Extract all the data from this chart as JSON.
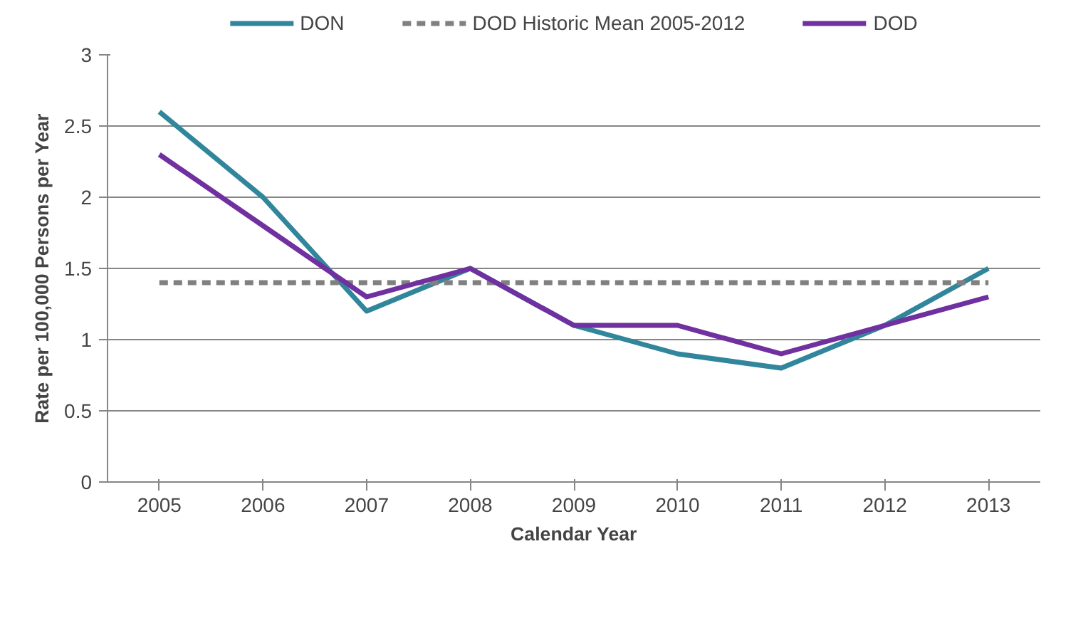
{
  "chart_data": {
    "type": "line",
    "xlabel": "Calendar Year",
    "ylabel": "Rate per 100,000 Persons per Year",
    "categories": [
      "2005",
      "2006",
      "2007",
      "2008",
      "2009",
      "2010",
      "2011",
      "2012",
      "2013"
    ],
    "series": [
      {
        "name": "DON",
        "color": "#31869b",
        "values": [
          2.6,
          2.0,
          1.2,
          1.5,
          1.1,
          0.9,
          0.8,
          1.1,
          1.5
        ]
      },
      {
        "name": "DOD Historic Mean 2005-2012",
        "color": "#808080",
        "line_style": "dashed",
        "values": [
          1.4,
          1.4,
          1.4,
          1.4,
          1.4,
          1.4,
          1.4,
          1.4,
          1.4
        ]
      },
      {
        "name": "DOD",
        "color": "#7030a0",
        "values": [
          2.3,
          1.8,
          1.3,
          1.5,
          1.1,
          1.1,
          0.9,
          1.1,
          1.3
        ]
      }
    ],
    "ylim": [
      0,
      3
    ],
    "yticks": [
      0,
      0.5,
      1,
      1.5,
      2,
      2.5,
      3
    ],
    "grid": "y",
    "legend": "top",
    "marker": "none",
    "line_style": "solid"
  }
}
